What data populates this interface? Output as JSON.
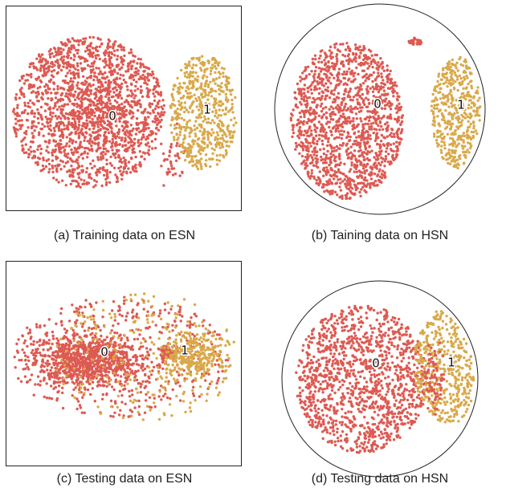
{
  "chart_data": [
    {
      "type": "scatter",
      "panel": "a",
      "caption": "(a) Training data on ESN",
      "frame": "rectangle",
      "cluster_labels": [
        "0",
        "1"
      ],
      "colors": {
        "0": "#dd5a52",
        "1": "#d9a94a"
      },
      "separation": "well separated"
    },
    {
      "type": "scatter",
      "panel": "b",
      "caption": "(b) Taining data on HSN",
      "frame": "circle",
      "cluster_labels": [
        "0",
        "1"
      ],
      "colors": {
        "0": "#dd5a52",
        "1": "#d9a94a"
      },
      "separation": "well separated"
    },
    {
      "type": "scatter",
      "panel": "c",
      "caption": "(c) Testing data on ESN",
      "frame": "rectangle",
      "cluster_labels": [
        "0",
        "1"
      ],
      "colors": {
        "0": "#dd5a52",
        "1": "#d9a94a"
      },
      "separation": "overlapping"
    },
    {
      "type": "scatter",
      "panel": "d",
      "caption": "(d) Testing data on HSN",
      "frame": "circle",
      "cluster_labels": [
        "0",
        "1"
      ],
      "colors": {
        "0": "#dd5a52",
        "1": "#d9a94a"
      },
      "separation": "partially overlapping"
    }
  ]
}
